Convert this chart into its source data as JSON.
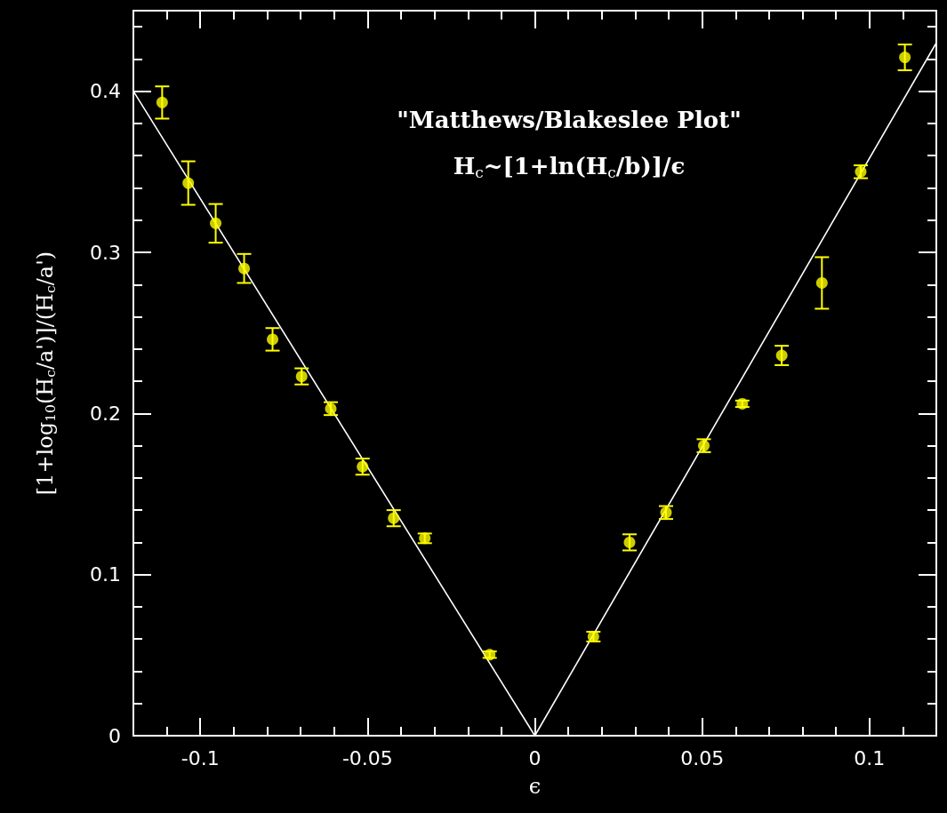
{
  "chart_data": {
    "type": "scatter",
    "xlabel": "ϵ",
    "ylabel": "[1+log$_{10}$(H$_{c}$/a')]/(H$_{c}$/a')",
    "annotations": [
      "\"Matthews/Blakeslee Plot\"",
      "H$_{c}$~[1+ln(H$_{c}$/b)]/ϵ"
    ],
    "xlim": [
      -0.12,
      0.12
    ],
    "xticks": [
      {
        "value": -0.11,
        "label": null
      },
      -0.1,
      {
        "value": -0.09,
        "label": null
      },
      {
        "value": -0.08,
        "label": null
      },
      {
        "value": -0.07,
        "label": null
      },
      {
        "value": -0.06,
        "label": null
      },
      -0.05,
      {
        "value": -0.04,
        "label": null
      },
      {
        "value": -0.03,
        "label": null
      },
      {
        "value": -0.02,
        "label": null
      },
      {
        "value": -0.01,
        "label": null
      },
      0,
      {
        "value": 0.01,
        "label": null
      },
      {
        "value": 0.02,
        "label": null
      },
      {
        "value": 0.03,
        "label": null
      },
      {
        "value": 0.04,
        "label": null
      },
      0.05,
      {
        "value": 0.06,
        "label": null
      },
      {
        "value": 0.07,
        "label": null
      },
      {
        "value": 0.08,
        "label": null
      },
      {
        "value": 0.09,
        "label": null
      },
      0.1,
      {
        "value": 0.11,
        "label": null
      }
    ],
    "ylim": [
      0,
      0.45
    ],
    "yticks": [
      0,
      {
        "value": 0.02,
        "label": null
      },
      {
        "value": 0.04,
        "label": null
      },
      {
        "value": 0.06,
        "label": null
      },
      {
        "value": 0.08,
        "label": null
      },
      0.1,
      {
        "value": 0.12,
        "label": null
      },
      {
        "value": 0.14,
        "label": null
      },
      {
        "value": 0.16,
        "label": null
      },
      {
        "value": 0.18,
        "label": null
      },
      0.2,
      {
        "value": 0.22,
        "label": null
      },
      {
        "value": 0.24,
        "label": null
      },
      {
        "value": 0.26,
        "label": null
      },
      {
        "value": 0.28,
        "label": null
      },
      0.3,
      {
        "value": 0.32,
        "label": null
      },
      {
        "value": 0.34,
        "label": null
      },
      {
        "value": 0.36,
        "label": null
      },
      {
        "value": 0.38,
        "label": null
      },
      0.4,
      {
        "value": 0.42,
        "label": null
      },
      {
        "value": 0.44,
        "label": null
      }
    ],
    "grid": false,
    "marker": "circle",
    "series": [
      {
        "color": "#ffff00",
        "x": [
          -0.1114,
          -0.1036,
          -0.0954,
          -0.0869,
          -0.0784,
          -0.0697,
          -0.061,
          -0.0515,
          -0.0422,
          -0.0329,
          -0.0135,
          0.0175,
          0.0283,
          0.0392,
          0.0505,
          0.062,
          0.0738,
          0.0858,
          0.0974,
          0.1106
        ],
        "values": [
          0.393,
          0.343,
          0.318,
          0.29,
          0.246,
          0.223,
          0.203,
          0.167,
          0.135,
          0.1225,
          0.0503,
          0.0615,
          0.12,
          0.1385,
          0.18,
          0.206,
          0.236,
          0.281,
          0.35,
          0.421
        ],
        "errors": [
          0.01,
          0.0135,
          0.012,
          0.009,
          0.007,
          0.005,
          0.004,
          0.005,
          0.005,
          0.003,
          0.002,
          0.003,
          0.005,
          0.004,
          0.004,
          0.002,
          0.006,
          0.016,
          0.004,
          0.008
        ]
      },
      {
        "type": "line",
        "color": "#ffffff",
        "x": [
          -0.12,
          0
        ],
        "values": [
          0.4,
          0
        ],
        "marker": "none",
        "line_style": "solid"
      },
      {
        "type": "line",
        "color": "#ffffff",
        "x": [
          0,
          0.12
        ],
        "values": [
          0,
          0.43
        ],
        "marker": "none",
        "line_style": "solid"
      }
    ]
  }
}
